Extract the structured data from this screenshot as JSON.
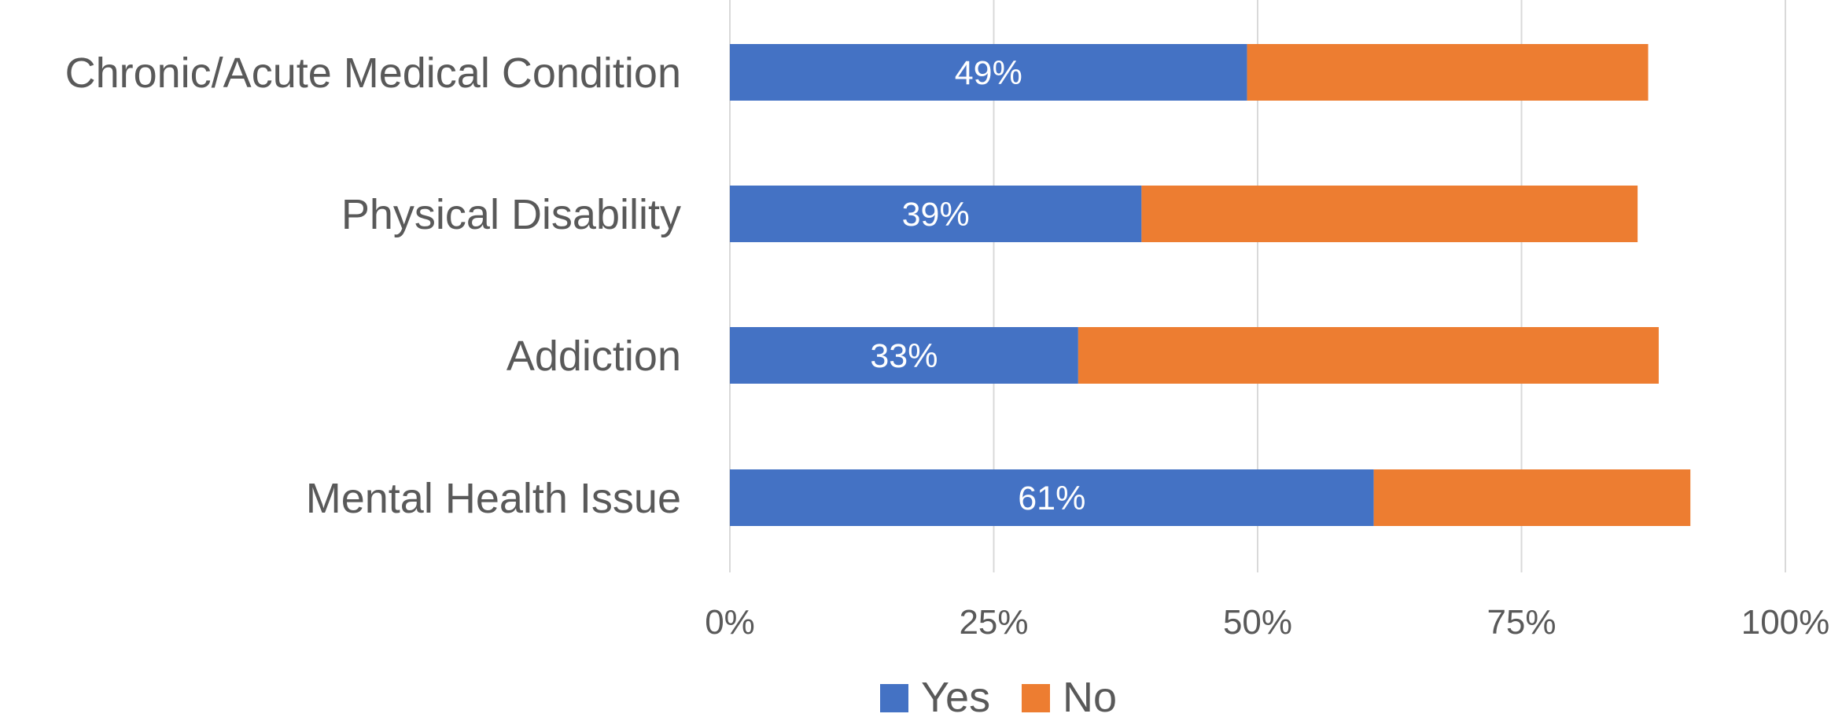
{
  "chart_data": {
    "type": "bar",
    "orientation": "horizontal",
    "stacked": true,
    "categories": [
      "Chronic/Acute Medical Condition",
      "Physical Disability",
      "Addiction",
      "Mental Health Issue"
    ],
    "series": [
      {
        "name": "Yes",
        "color": "#4472c4",
        "values": [
          49,
          39,
          33,
          61
        ],
        "data_labels": [
          "49%",
          "39%",
          "33%",
          "61%"
        ]
      },
      {
        "name": "No",
        "color": "#ed7d31",
        "values": [
          38,
          47,
          55,
          30
        ]
      }
    ],
    "xlim": [
      0,
      100
    ],
    "x_ticks": [
      0,
      25,
      50,
      75,
      100
    ],
    "x_tick_labels": [
      "0%",
      "25%",
      "50%",
      "75%",
      "100%"
    ],
    "grid": true,
    "legend": {
      "placement": "bottom",
      "entries": [
        "Yes",
        "No"
      ]
    },
    "title": "",
    "xlabel": "",
    "ylabel": ""
  }
}
